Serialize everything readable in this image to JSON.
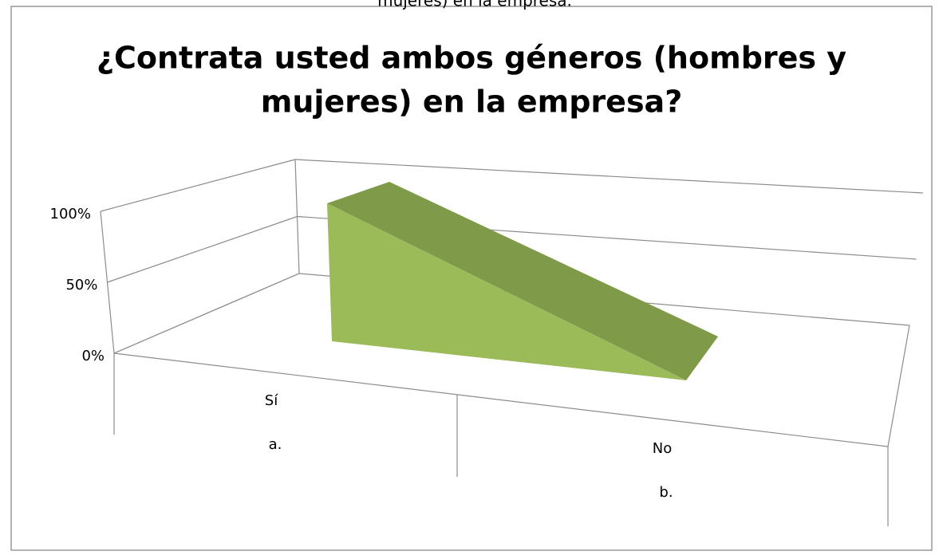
{
  "caption": "mujeres) en la empresa.",
  "chart_data": {
    "type": "area3d",
    "title_lines": [
      "¿Contrata usted ambos géneros (hombres y",
      "mujeres) en la empresa?"
    ],
    "categories": [
      "Sí",
      "No"
    ],
    "subcategories": [
      "a.",
      "b."
    ],
    "values": [
      100,
      0
    ],
    "color": "#9bbb59",
    "top_color": "#7f9a48",
    "ylim": [
      0,
      100
    ],
    "yticks": [
      {
        "value": 0,
        "label": "0%"
      },
      {
        "value": 50,
        "label": "50%"
      },
      {
        "value": 100,
        "label": "100%"
      }
    ],
    "grid": true
  }
}
